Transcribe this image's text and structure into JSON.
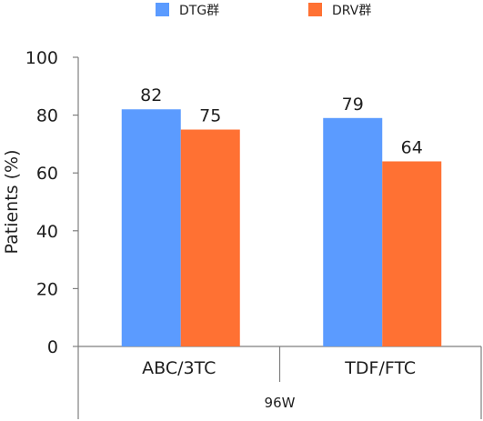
{
  "chart_data": {
    "type": "bar",
    "title": "",
    "ylabel": "Patients (%)",
    "xlabel": "",
    "ylim": [
      0,
      100
    ],
    "yticks": [
      0,
      20,
      40,
      60,
      80,
      100
    ],
    "categories": [
      "ABC/3TC",
      "TDF/FTC"
    ],
    "group_label": "96W",
    "series": [
      {
        "name": "DTG群",
        "color": "#5b9bff",
        "values": [
          82,
          79
        ]
      },
      {
        "name": "DRV群",
        "color": "#ff7133",
        "values": [
          75,
          64
        ]
      }
    ],
    "grid": false,
    "legend_position": "top"
  }
}
